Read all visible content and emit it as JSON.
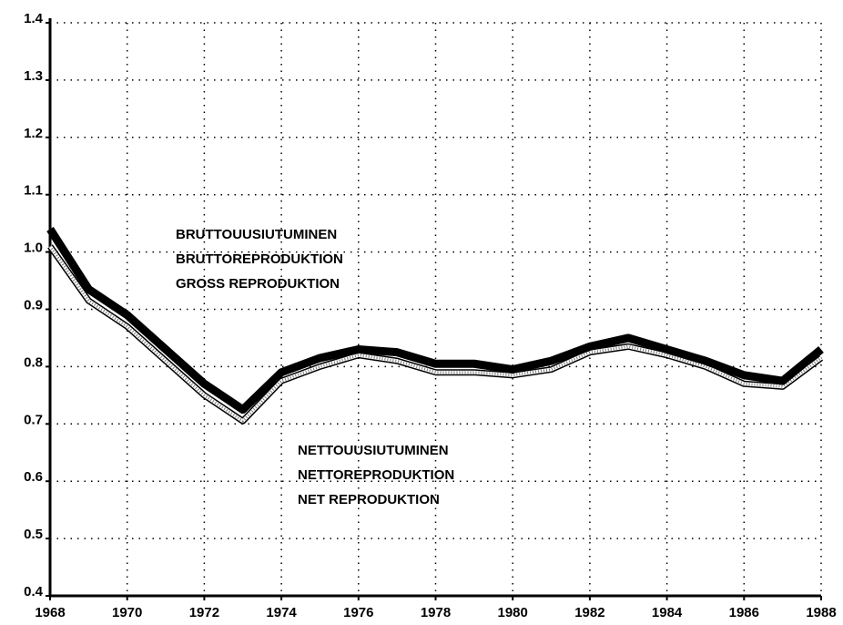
{
  "chart_data": {
    "type": "line",
    "x": [
      1968,
      1969,
      1970,
      1971,
      1972,
      1973,
      1974,
      1975,
      1976,
      1977,
      1978,
      1979,
      1980,
      1981,
      1982,
      1983,
      1984,
      1985,
      1986,
      1987,
      1988
    ],
    "series": [
      {
        "name": "GROSS",
        "color": "#000000",
        "values": [
          1.04,
          0.935,
          0.89,
          0.83,
          0.77,
          0.725,
          0.79,
          0.815,
          0.83,
          0.825,
          0.805,
          0.805,
          0.795,
          0.81,
          0.835,
          0.85,
          0.83,
          0.81,
          0.785,
          0.775,
          0.83
        ]
      },
      {
        "name": "NET",
        "color": "#ffffff",
        "values": [
          1.01,
          0.915,
          0.87,
          0.81,
          0.75,
          0.705,
          0.775,
          0.8,
          0.82,
          0.81,
          0.79,
          0.79,
          0.785,
          0.795,
          0.825,
          0.835,
          0.82,
          0.8,
          0.77,
          0.765,
          0.815
        ]
      }
    ],
    "annotations": [
      [
        "BRUTTOUUSIUTUMINEN",
        "BRUTTOREPRODUKTION",
        "GROSS REPRODUKTION"
      ],
      [
        "NETTOUUSIUTUMINEN",
        "NETTOREPRODUKTION",
        "NET REPRODUKTION"
      ]
    ],
    "xlim": [
      1968,
      1988
    ],
    "xticks": [
      1968,
      1970,
      1972,
      1974,
      1976,
      1978,
      1980,
      1982,
      1984,
      1986,
      1988
    ],
    "ylim": [
      0.4,
      1.4
    ],
    "yticks": [
      0.4,
      0.5,
      0.6,
      0.7,
      0.8,
      0.9,
      {
        "value": 1,
        "label": "1.0"
      },
      1.1,
      1.2,
      1.3,
      1.4
    ],
    "grid": true
  }
}
